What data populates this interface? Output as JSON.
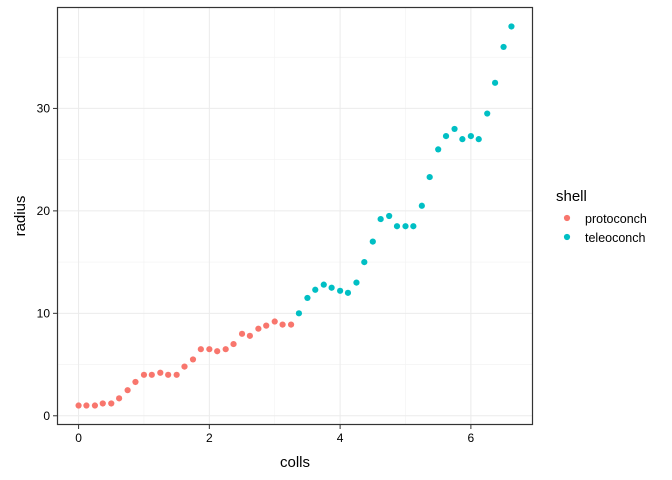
{
  "chart_data": {
    "type": "scatter",
    "title": "",
    "xlabel": "colls",
    "ylabel": "radius",
    "xlim": [
      -0.33,
      6.95
    ],
    "ylim": [
      -0.9,
      39.9
    ],
    "x_ticks": [
      0,
      2,
      4,
      6
    ],
    "x_tick_labels": [
      "0",
      "2",
      "4",
      "6"
    ],
    "y_ticks": [
      0,
      10,
      20,
      30
    ],
    "y_tick_labels": [
      "0",
      "10",
      "20",
      "30"
    ],
    "grid": true,
    "legend": {
      "title": "shell",
      "position": "right"
    },
    "series": [
      {
        "name": "protoconch",
        "color": "#F8766D",
        "x": [
          0,
          0.12,
          0.25,
          0.37,
          0.5,
          0.62,
          0.75,
          0.87,
          1.0,
          1.12,
          1.25,
          1.37,
          1.5,
          1.62,
          1.75,
          1.87,
          2.0,
          2.12,
          2.25,
          2.37,
          2.5,
          2.62,
          2.75,
          2.87,
          3.0,
          3.12,
          3.25
        ],
        "y": [
          1.0,
          1.0,
          1.0,
          1.2,
          1.2,
          1.7,
          2.5,
          3.3,
          4.0,
          4.0,
          4.2,
          4.0,
          4.0,
          4.8,
          5.5,
          6.5,
          6.5,
          6.3,
          6.5,
          7.0,
          8.0,
          7.8,
          8.5,
          8.8,
          9.2,
          8.9,
          8.9
        ]
      },
      {
        "name": "teleoconch",
        "color": "#00BFC4",
        "x": [
          3.37,
          3.5,
          3.62,
          3.75,
          3.87,
          4.0,
          4.12,
          4.25,
          4.37,
          4.5,
          4.62,
          4.75,
          4.87,
          5.0,
          5.12,
          5.25,
          5.37,
          5.5,
          5.62,
          5.75,
          5.87,
          6.0,
          6.12,
          6.25,
          6.37,
          6.5,
          6.62
        ],
        "y": [
          10.0,
          11.5,
          12.3,
          12.8,
          12.5,
          12.2,
          12.0,
          13.0,
          15.0,
          17.0,
          19.2,
          19.5,
          18.5,
          18.5,
          18.5,
          20.5,
          23.3,
          26.0,
          27.3,
          28.0,
          27.0,
          27.3,
          27.0,
          29.5,
          32.5,
          36.0,
          38.0
        ]
      }
    ]
  }
}
